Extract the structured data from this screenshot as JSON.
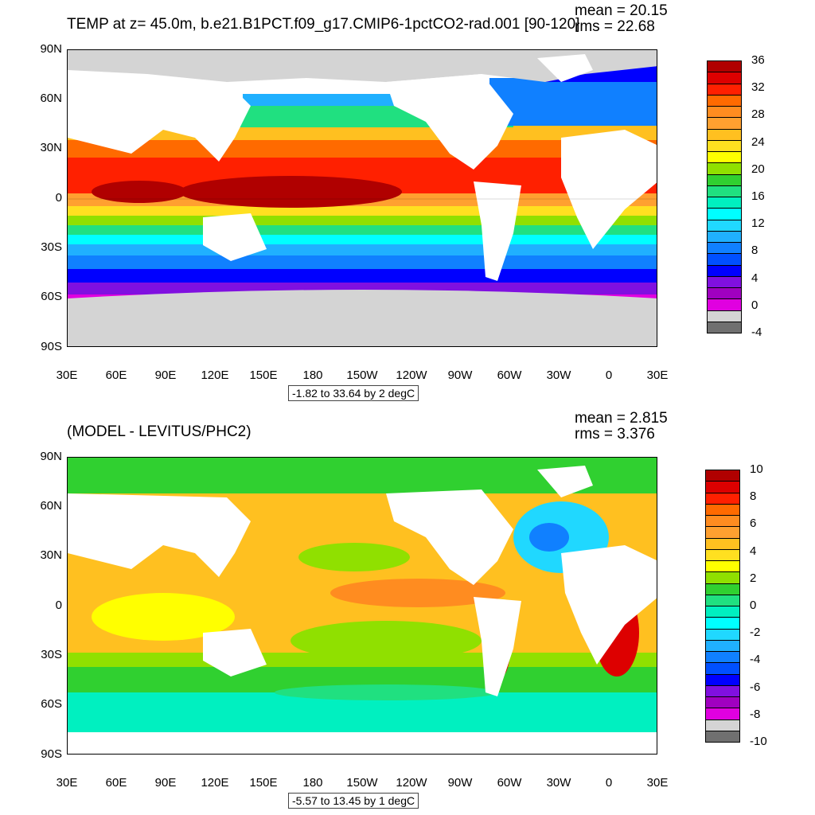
{
  "top": {
    "title": "TEMP at z=  45.0m, b.e21.B1PCT.f09_g17.CMIP6-1pctCO2-rad.001 [90-120]",
    "mean_text": "mean = 20.15",
    "rms_text": "rms = 22.68",
    "range_text": "-1.82 to 33.64 by 2 degC",
    "colorbar_labels": [
      "36",
      "32",
      "28",
      "24",
      "20",
      "16",
      "12",
      "8",
      "4",
      "0",
      "-4"
    ],
    "colorbar_colors": [
      "#b00000",
      "#dd0000",
      "#ff2000",
      "#ff6a00",
      "#ff8c20",
      "#ffa030",
      "#ffc020",
      "#ffe020",
      "#ffff00",
      "#90e000",
      "#30d030",
      "#20e080",
      "#00f0c0",
      "#00ffff",
      "#20d8ff",
      "#20b0ff",
      "#1080ff",
      "#0050ff",
      "#0000ff",
      "#8010e0",
      "#a000c0",
      "#e000e0",
      "#d4d4d4",
      "#707070"
    ],
    "lat_labels": [
      "90N",
      "60N",
      "30N",
      "0",
      "30S",
      "60S",
      "90S"
    ],
    "lon_labels": [
      "30E",
      "60E",
      "90E",
      "120E",
      "150E",
      "180",
      "150W",
      "120W",
      "90W",
      "60W",
      "30W",
      "0",
      "30E"
    ]
  },
  "bottom": {
    "title": "(MODEL - LEVITUS/PHC2)",
    "mean_text": "mean = 2.815",
    "rms_text": "rms = 3.376",
    "range_text": "-5.57 to 13.45 by 1 degC",
    "colorbar_labels": [
      "10",
      "8",
      "6",
      "4",
      "2",
      "0",
      "-2",
      "-4",
      "-6",
      "-8",
      "-10"
    ],
    "colorbar_colors": [
      "#b00000",
      "#dd0000",
      "#ff2000",
      "#ff6a00",
      "#ff8c20",
      "#ffa030",
      "#ffc020",
      "#ffe020",
      "#ffff00",
      "#90e000",
      "#30d030",
      "#20e080",
      "#00f0c0",
      "#00ffff",
      "#20d8ff",
      "#20b0ff",
      "#1080ff",
      "#0050ff",
      "#0000ff",
      "#8010e0",
      "#a000c0",
      "#e000e0",
      "#d4d4d4",
      "#707070"
    ],
    "lat_labels": [
      "90N",
      "60N",
      "30N",
      "0",
      "30S",
      "60S",
      "90S"
    ],
    "lon_labels": [
      "30E",
      "60E",
      "90E",
      "120E",
      "150E",
      "180",
      "150W",
      "120W",
      "90W",
      "60W",
      "30W",
      "0",
      "30E"
    ]
  }
}
